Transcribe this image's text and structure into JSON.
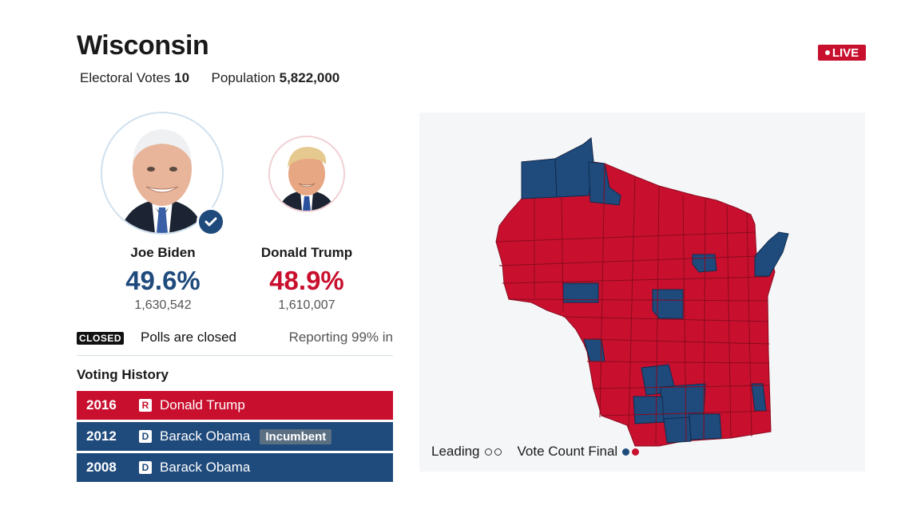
{
  "state": {
    "name": "Wisconsin",
    "electoral_votes_label": "Electoral Votes",
    "electoral_votes": "10",
    "population_label": "Population",
    "population": "5,822,000",
    "live_label": "LIVE"
  },
  "candidates": [
    {
      "name": "Joe Biden",
      "pct": "49.6%",
      "votes": "1,630,542",
      "party": "D",
      "winner": true,
      "color": "#1e4a7c"
    },
    {
      "name": "Donald Trump",
      "pct": "48.9%",
      "votes": "1,610,007",
      "party": "R",
      "winner": false,
      "color": "#c8102e"
    }
  ],
  "status": {
    "tag": "CLOSED",
    "text": "Polls are closed",
    "reporting": "Reporting 99% in"
  },
  "voting_history": {
    "title": "Voting History",
    "rows": [
      {
        "year": "2016",
        "party": "R",
        "name": "Donald Trump",
        "badge": ""
      },
      {
        "year": "2012",
        "party": "D",
        "name": "Barack Obama",
        "badge": "Incumbent"
      },
      {
        "year": "2008",
        "party": "D",
        "name": "Barack Obama",
        "badge": ""
      }
    ]
  },
  "map": {
    "legend_leading": "Leading",
    "legend_final": "Vote Count Final",
    "colors": {
      "dem": "#1e4a7c",
      "rep": "#c8102e",
      "background": "#f5f6f8"
    }
  },
  "icons": {
    "winner": "checkmark-icon",
    "live": "live-dot-icon"
  }
}
